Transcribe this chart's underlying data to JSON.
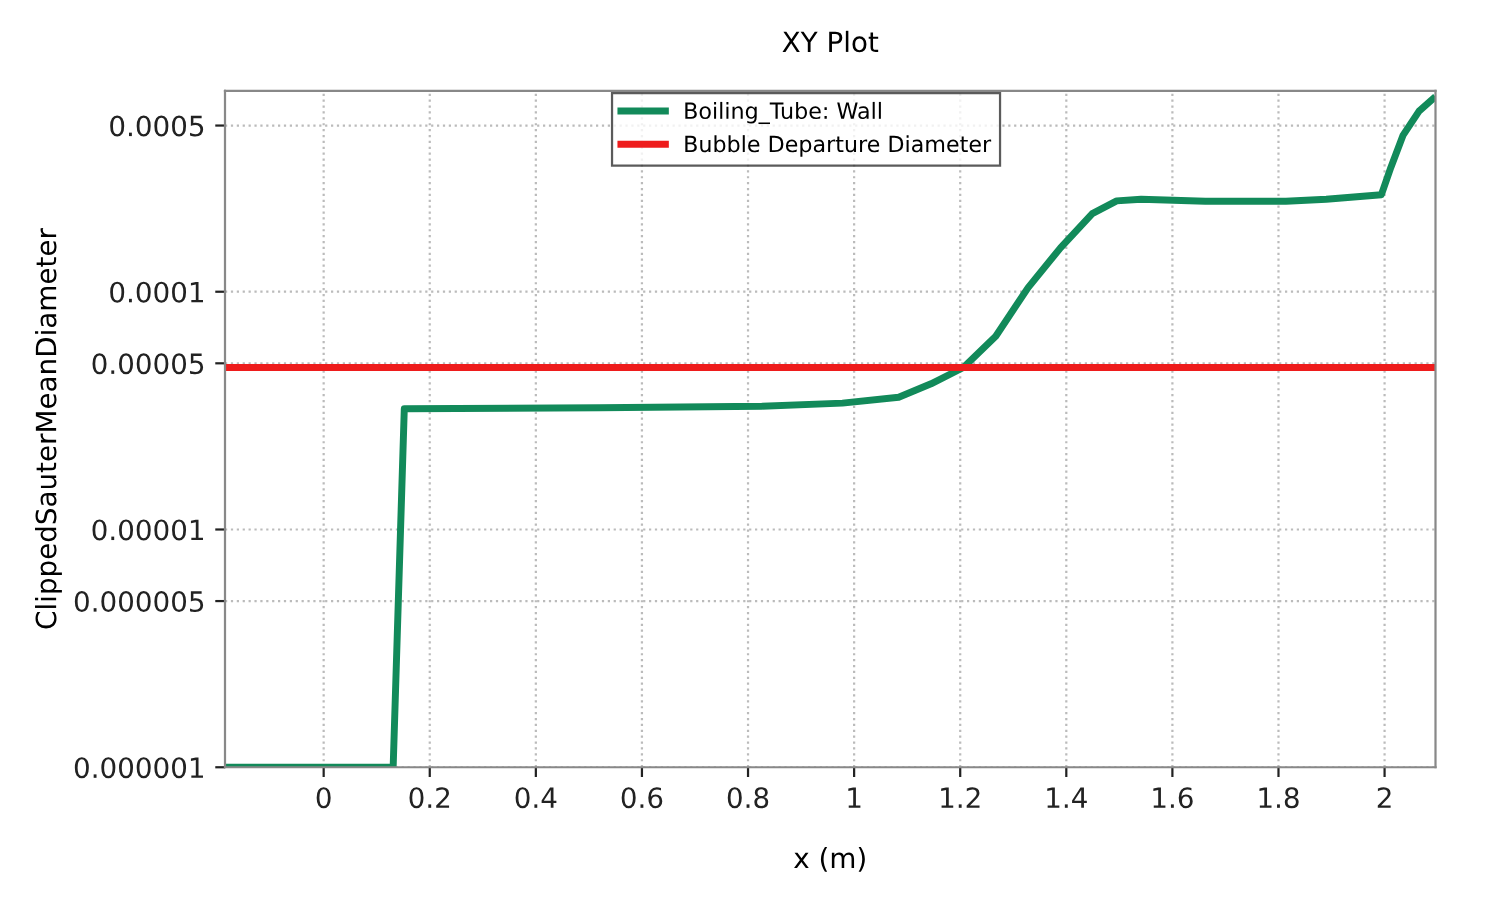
{
  "chart_data": {
    "type": "line",
    "title": "XY Plot",
    "xlabel": "x (m)",
    "ylabel": "ClippedSauterMeanDiameter",
    "log": "y",
    "grid": true,
    "legend": "top",
    "marker": "none",
    "line_style": "solid",
    "xlim": [
      -0.186,
      2.096
    ],
    "xticks": [
      0,
      0.2,
      0.4,
      0.6,
      0.8,
      1,
      1.2,
      1.4,
      1.6,
      1.8,
      2
    ],
    "ylim": [
      1e-06,
      0.0007
    ],
    "yticks": [
      {
        "value": 1e-06,
        "label": "0.000001"
      },
      {
        "value": 5e-06,
        "label": "0.000005"
      },
      {
        "value": 1e-05,
        "label": "0.00001"
      },
      {
        "value": 5e-05,
        "label": "0.00005"
      },
      {
        "value": 0.0001,
        "label": "0.0001"
      },
      {
        "value": 0.0005,
        "label": "0.0005"
      }
    ],
    "series": [
      {
        "name": "Boiling_Tube: Wall",
        "color": "#128a5a",
        "x": [
          -0.186,
          0.131,
          0.152,
          0.52,
          0.826,
          0.978,
          1.084,
          1.145,
          1.206,
          1.267,
          1.328,
          1.389,
          1.449,
          1.495,
          1.541,
          1.662,
          1.814,
          1.89,
          1.994,
          2.012,
          2.035,
          2.065,
          2.091
        ],
        "values": [
          1e-06,
          1e-06,
          3.22e-05,
          3.25e-05,
          3.3e-05,
          3.4e-05,
          3.6e-05,
          4.1e-05,
          4.8e-05,
          6.5e-05,
          0.000104,
          0.000153,
          0.000213,
          0.000241,
          0.000245,
          0.00024,
          0.00024,
          0.000245,
          0.000256,
          0.000334,
          0.000456,
          0.000575,
          0.000647
        ]
      },
      {
        "name": "Bubble Departure Diameter",
        "color": "#ee1c1c",
        "x": [
          -0.186,
          2.096
        ],
        "values": [
          4.8e-05,
          4.8e-05
        ]
      }
    ]
  }
}
